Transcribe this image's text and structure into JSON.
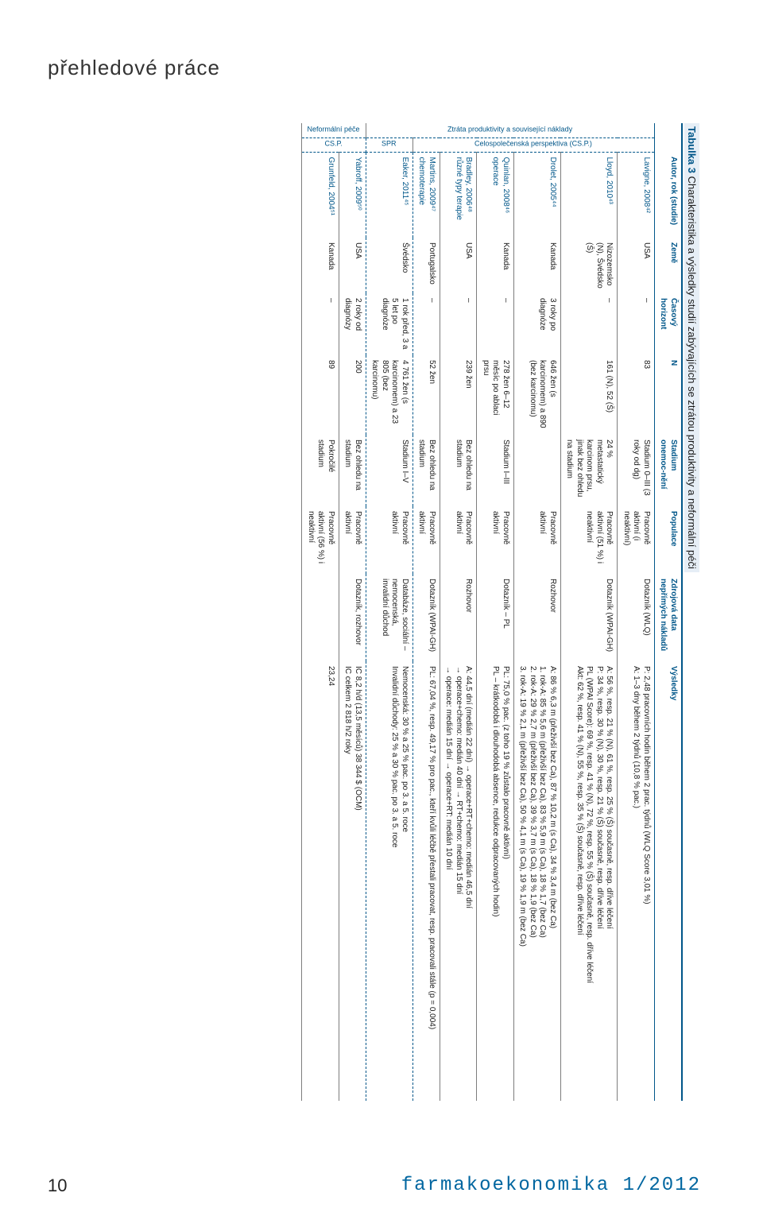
{
  "colors": {
    "accent": "#005689",
    "text": "#1a1a1a",
    "headerBg": "#e6eef6",
    "ruleGray": "#7d7d7d",
    "white": "#ffffff"
  },
  "section_title": "přehledové práce",
  "page_number": "10",
  "journal": "farmakoekonomika 1/2012",
  "table": {
    "title_bold": "Tabulka 3",
    "title_rest": " Charakteristika a výsledky studií zabývajících se ztrátou produktivity a neformální péči",
    "headers": {
      "side1": "",
      "side2": "",
      "study": "Autor, rok (studie)",
      "country": "Země",
      "time": "Časový horizont",
      "n": "N",
      "stage": "Stadium onemoc-nění",
      "pop": "Populace",
      "src": "Zdrojová data nepřímých nákladů",
      "res": "Výsledky"
    },
    "side_outer": {
      "ztrata": "Ztráta produktivity a související náklady",
      "neformal": "Neformální péče"
    },
    "side_inner": {
      "csp": "Celospolečenská perspektiva (CS.P.)",
      "spr": "SPR",
      "csp2": "CS.P."
    },
    "rows": [
      {
        "study": "Lavigne, 2008⁴²",
        "country": "USA",
        "time": "–",
        "n": "83",
        "stage": "Stadium 0–III (3 roky od dg)",
        "pop": "Pracovně aktivní (i neaktivní)",
        "src": "Dotazník (WLQ)",
        "res": "P: 2,48 pracovních hodin během 2 prac. týdnů (WLQ Score 3,01 %)\nA: 1–3 dny během 2 týdnů (10,8 % pac.)"
      },
      {
        "study": "Lloyd, 2010⁴³",
        "country": "Nizozemsko (N), Švédsko (Š)",
        "time": "–",
        "n": "161 (N), 52 (Š)",
        "stage": "24 % metastatický karcinom prsu, jinak bez ohledu na stadium",
        "pop": "Pracovně aktivní (51 %) i neaktivní",
        "src": "Dotazník (WPAI-GH)",
        "res": "A: 56 %, resp. 21 % (N), 61 %, resp. 25 % (Š) současně, resp. dříve léčení\nP: 34 %, resp. 30 % (N), 30 %, resp. 21 % (Š) současně, resp. dříve léčení\nPL (WPAI Score): 69 %, resp. 41 % (N), 72 %, resp. 55 % (Š) současně, resp. dříve léčení\nAkt: 62 %, resp. 41 % (N), 55 %, resp. 35 % (Š) současně, resp. dříve léčení"
      },
      {
        "study": "Drolet, 2005⁴⁴",
        "country": "Kanada",
        "time": "3 roky po diagnóze",
        "n": "646 žen (s karcinomem) a 890 (bez karcinomu)",
        "stage": "",
        "pop": "Pracovně aktivní",
        "src": "Rozhovor",
        "res": "A: 86 % 6,3 m (přeživší bez Ca), 87 % 10,2 m (s Ca), 34 % 3,4 m (bez Ca)\n1. rok-A: 85 % 5,6 m (přeživší bez Ca), 83 % 5,9 m (s Ca), 18 % 1,7 (bez Ca)\n2. rok-A: 29 % 2,7 m (přeživší bez Ca), 39 % 3,7 m (s Ca), 18 % 1,9 (bez Ca)\n3. rok-A: 19 % 2,1 m (přeživší bez Ca), 50 % 4,1 m (s Ca), 19 % 1,9 m (bez Ca)"
      },
      {
        "study": "Quinlan, 2008⁴⁶\noperace",
        "country": "Kanada",
        "time": "–",
        "n": "278 žen 6–12 měsíc po ablaci prsu",
        "stage": "Stadium I–III",
        "pop": "Pracovně aktivní",
        "src": "Dotazník – PL",
        "res": "PL: 75,0 % pac. (z toho 19 % zůstalo pracovně aktivní)\nPL – krátkodobá i dlouhodobá absence, redukce odpracovaných hodin)"
      },
      {
        "study": "Bradley, 2006⁴⁸\nrůzné typy terapie",
        "country": "USA",
        "time": "–",
        "n": "239 žen",
        "stage": "Bez ohledu na stadium",
        "pop": "Pracovně aktivní",
        "src": "Rozhovor",
        "res": "A: 44,5 dní (medián 22 dní)    → operace+RT+chemo: medián 46,5 dní\n→ operace+chemo: medián 40 dní    → RT+chemo: medián 15 dní\n→ operace: medián 15 dní    → operace+RT: medián 10 dní"
      },
      {
        "study": "Martins, 2009⁴⁷\nchemoterapie",
        "country": "Portugalsko",
        "time": "–",
        "n": "52 žen",
        "stage": "Bez ohledu na stadium",
        "pop": "Pracovně aktivní",
        "src": "Dotazník (WPAI-GH)",
        "res": "PL: 67,04 %, resp. 49,17 % pro pac., kteří kvůli léčbě přestali pracovat, resp. pracovali stále (p = 0,004)"
      },
      {
        "study": "Eaker, 2011⁴⁵",
        "country": "Švédsko",
        "time": "1 rok před, 3 a 5 let po diagnóze",
        "n": "4 761 žen (s karcinomem) a 23 805 (bez karcinomu)",
        "stage": "Stadium I–V",
        "pop": "Pracovně aktivní",
        "src": "Databáze, sociální – nemocenská, invalidní důchod",
        "res": "Nemocenská: 30 % a 25 % pac. po 3. a 5. roce\nInvalidní důchody: 25 % a 30 % pac. po 3. a 5. roce"
      },
      {
        "study": "Yabroff, 2009⁵⁰",
        "country": "USA",
        "time": "2 roky od diagnózy",
        "n": "200",
        "stage": "Bez ohledu na stadium",
        "pop": "Pracovně aktivní",
        "src": "Dotazník, rozhovor",
        "res": "IC 8,2 h/d (13,5 měsíců)        38 344 $ (OCM)\nIC celkem 2 818 h/2 roky"
      },
      {
        "study": "Grunfeld, 2004⁵¹",
        "country": "Kanada",
        "time": "–",
        "n": "89",
        "stage": "Pokročilé stadium",
        "pop": "Pracovně aktivní (56 %) i neaktivní",
        "src": "",
        "res": "23,24"
      }
    ]
  }
}
